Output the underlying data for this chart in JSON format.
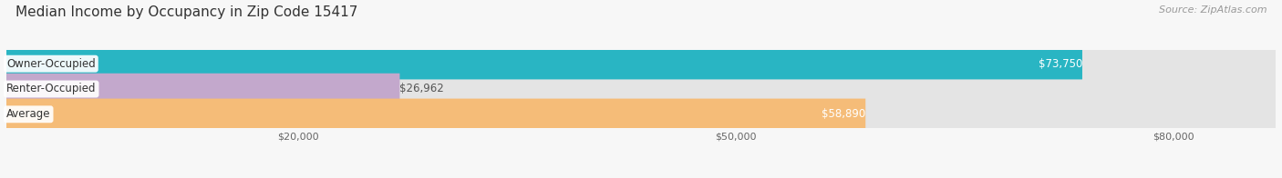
{
  "title": "Median Income by Occupancy in Zip Code 15417",
  "source": "Source: ZipAtlas.com",
  "categories": [
    "Owner-Occupied",
    "Renter-Occupied",
    "Average"
  ],
  "values": [
    73750,
    26962,
    58890
  ],
  "bar_colors": [
    "#29b5c3",
    "#c3a8cc",
    "#f5bc78"
  ],
  "value_labels": [
    "$73,750",
    "$26,962",
    "$58,890"
  ],
  "label_text_color_inside": [
    "#ffffff",
    "#666666",
    "#ffffff"
  ],
  "x_ticks": [
    20000,
    50000,
    80000
  ],
  "x_tick_labels": [
    "$20,000",
    "$50,000",
    "$80,000"
  ],
  "xlim": [
    0,
    87000
  ],
  "max_bar_val": 87000,
  "title_fontsize": 11,
  "source_fontsize": 8,
  "cat_label_fontsize": 8.5,
  "value_fontsize": 8.5,
  "tick_fontsize": 8,
  "background_color": "#f7f7f7",
  "bar_bg_color": "#e4e4e4",
  "bar_height": 0.62
}
